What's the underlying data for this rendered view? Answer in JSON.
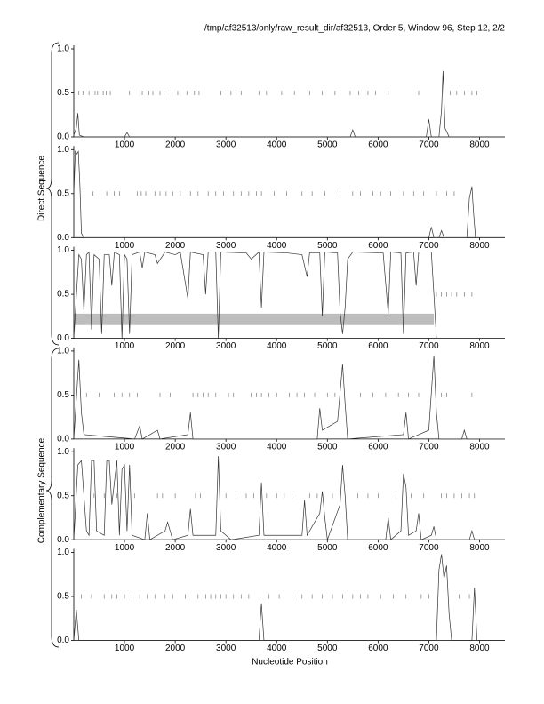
{
  "title": "/tmp/af32513/only/raw_result_dir/af32513, Order 5, Window 96, Step 12, 2/2",
  "x_label": "Nucleotide Position",
  "group_labels": [
    "Direct Sequence",
    "Complementary Sequence"
  ],
  "chart_data": [
    {
      "type": "line",
      "xlim": [
        0,
        8500
      ],
      "ylim": [
        0,
        1
      ],
      "xticks": [
        1000,
        2000,
        3000,
        4000,
        5000,
        6000,
        7000,
        8000
      ],
      "yticks": [
        {
          "value": 0,
          "label": "0.0"
        },
        {
          "value": 0.5,
          "label": "0.5"
        },
        {
          "value": 1,
          "label": "1.0"
        }
      ],
      "color": "#333",
      "x": [
        0,
        50,
        80,
        110,
        200,
        1000,
        1050,
        1100,
        5450,
        5500,
        5550,
        6950,
        7000,
        7050,
        7200,
        7250,
        7280,
        7320,
        7360,
        7400,
        8500
      ],
      "values": [
        0.02,
        0.1,
        0.27,
        0.02,
        0,
        0,
        0.05,
        0,
        0,
        0.08,
        0,
        0,
        0.2,
        0,
        0,
        0.3,
        0.75,
        0.1,
        0.05,
        0,
        0
      ],
      "orf_marks": [
        100,
        180,
        300,
        420,
        470,
        520,
        580,
        640,
        720,
        1100,
        1350,
        1480,
        1560,
        1700,
        1780,
        2050,
        2230,
        2380,
        2470,
        2900,
        3100,
        3300,
        3650,
        3800,
        4100,
        4350,
        4650,
        4900,
        5150,
        5450,
        5620,
        5800,
        5950,
        6200,
        6800,
        7420,
        7550,
        7700,
        7850,
        7950
      ]
    },
    {
      "type": "line",
      "xlim": [
        0,
        8500
      ],
      "ylim": [
        0,
        1
      ],
      "xticks": [
        1000,
        2000,
        3000,
        4000,
        5000,
        6000,
        7000,
        8000
      ],
      "yticks": [
        {
          "value": 0,
          "label": "0.0"
        },
        {
          "value": 0.5,
          "label": "0.5"
        },
        {
          "value": 1,
          "label": "1.0"
        }
      ],
      "color": "#333",
      "x": [
        0,
        30,
        60,
        90,
        120,
        150,
        200,
        7000,
        7050,
        7100,
        7200,
        7250,
        7300,
        7750,
        7800,
        7850,
        7880,
        7920,
        8500
      ],
      "values": [
        0.5,
        0.98,
        0.95,
        0.98,
        0.6,
        0.05,
        0,
        0,
        0.12,
        0,
        0,
        0.08,
        0,
        0,
        0.45,
        0.58,
        0.3,
        0,
        0
      ],
      "orf_marks": [
        200,
        380,
        650,
        800,
        900,
        1250,
        1330,
        1420,
        1600,
        1700,
        1820,
        1950,
        2100,
        2300,
        2450,
        2650,
        2800,
        2950,
        3150,
        3300,
        3450,
        3600,
        3700,
        3950,
        4200,
        4500,
        4700,
        4950,
        5250,
        5500,
        5650,
        5900,
        6050,
        6250,
        6500,
        6700,
        6900,
        7150,
        7350,
        7500
      ]
    },
    {
      "type": "line",
      "xlim": [
        0,
        8500
      ],
      "ylim": [
        0,
        1
      ],
      "xticks": [
        1000,
        2000,
        3000,
        4000,
        5000,
        6000,
        7000,
        8000
      ],
      "yticks": [
        {
          "value": 0,
          "label": "0.0"
        },
        {
          "value": 0.5,
          "label": "0.5"
        },
        {
          "value": 1,
          "label": "1.0"
        }
      ],
      "color": "#333",
      "highlight": {
        "x": [
          0,
          7100
        ],
        "y": [
          0.15,
          0.28
        ],
        "color": "#bdbdbd"
      },
      "x": [
        0,
        100,
        150,
        200,
        250,
        300,
        350,
        400,
        500,
        550,
        600,
        700,
        750,
        800,
        900,
        950,
        1000,
        1050,
        1100,
        1150,
        1300,
        1350,
        1400,
        1600,
        1650,
        1800,
        2000,
        2100,
        2250,
        2300,
        2550,
        2600,
        2650,
        2800,
        2850,
        2900,
        3400,
        3500,
        3650,
        3700,
        3750,
        4200,
        4500,
        4600,
        4650,
        4850,
        4900,
        4950,
        5200,
        5250,
        5300,
        5350,
        5400,
        5500,
        6100,
        6200,
        6250,
        6450,
        6500,
        6550,
        6700,
        6750,
        6800,
        7050,
        7100,
        7150,
        8500
      ],
      "values": [
        0,
        0.95,
        0.9,
        0.3,
        0.95,
        0.98,
        0.1,
        0.95,
        0.9,
        0.05,
        0.95,
        0.95,
        0.6,
        0.98,
        0.95,
        0,
        0.95,
        0.9,
        0.05,
        0.95,
        0.98,
        0.8,
        0.98,
        0.95,
        0.85,
        0.98,
        0.95,
        0.98,
        0.45,
        0.98,
        0.95,
        0.5,
        0.98,
        0.98,
        0,
        0.98,
        0.97,
        0.9,
        0.98,
        0.35,
        0.98,
        0.97,
        0.95,
        0.7,
        0.97,
        0.97,
        0.25,
        0.98,
        0.97,
        0.3,
        0.05,
        0.35,
        0.9,
        0.98,
        0.97,
        0.28,
        0.98,
        0.97,
        0.05,
        0.97,
        0.98,
        0.6,
        0.98,
        0.98,
        0.5,
        0,
        0
      ],
      "orf_marks": [
        7150,
        7250,
        7350,
        7450,
        7550,
        7700,
        7850
      ]
    },
    {
      "type": "line",
      "xlim": [
        0,
        8500
      ],
      "ylim": [
        0,
        1
      ],
      "xticks": [
        1000,
        2000,
        3000,
        4000,
        5000,
        6000,
        7000,
        8000
      ],
      "yticks": [
        {
          "value": 0,
          "label": "0.0"
        },
        {
          "value": 0.5,
          "label": "0.5"
        },
        {
          "value": 1,
          "label": "1.0"
        }
      ],
      "color": "#333",
      "x": [
        0,
        100,
        150,
        200,
        1200,
        1300,
        1350,
        1650,
        1700,
        2250,
        2300,
        2350,
        4800,
        4850,
        4900,
        5200,
        5300,
        5350,
        5400,
        6500,
        6550,
        6600,
        7000,
        7100,
        7150,
        7200,
        7650,
        7700,
        7750,
        8500
      ],
      "values": [
        0,
        0.9,
        0.3,
        0.05,
        0,
        0.15,
        0,
        0.1,
        0,
        0.05,
        0.3,
        0,
        0,
        0.35,
        0.1,
        0.2,
        0.85,
        0.4,
        0,
        0.05,
        0.3,
        0,
        0.1,
        0.95,
        0.3,
        0,
        0,
        0.1,
        0,
        0
      ],
      "orf_marks": [
        250,
        500,
        800,
        950,
        1100,
        1250,
        1700,
        1900,
        2350,
        2450,
        2550,
        2650,
        2800,
        3050,
        3150,
        3500,
        3600,
        3700,
        3850,
        4000,
        4250,
        4400,
        4550,
        4750,
        5000,
        5150,
        5650,
        5900,
        6150,
        6400,
        6600,
        6800,
        7250,
        7350,
        7850
      ]
    },
    {
      "type": "line",
      "xlim": [
        0,
        8500
      ],
      "ylim": [
        0,
        1
      ],
      "xticks": [
        1000,
        2000,
        3000,
        4000,
        5000,
        6000,
        7000,
        8000
      ],
      "yticks": [
        {
          "value": 0,
          "label": "0.0"
        },
        {
          "value": 0.5,
          "label": "0.5"
        },
        {
          "value": 1,
          "label": "1.0"
        }
      ],
      "color": "#333",
      "x": [
        0,
        80,
        150,
        250,
        300,
        350,
        400,
        450,
        600,
        650,
        700,
        750,
        850,
        900,
        950,
        1000,
        1050,
        1100,
        1150,
        1400,
        1450,
        1500,
        1800,
        1850,
        1900,
        1950,
        2250,
        2300,
        2350,
        2800,
        2850,
        2900,
        3100,
        3650,
        3700,
        3750,
        4500,
        4550,
        4600,
        4850,
        4900,
        4950,
        5000,
        5250,
        5300,
        5350,
        5400,
        6150,
        6200,
        6250,
        6450,
        6500,
        6550,
        6600,
        6750,
        6800,
        6850,
        7050,
        7100,
        7150,
        7800,
        7850,
        7900,
        8500
      ],
      "values": [
        0,
        0.85,
        0.9,
        0.1,
        0.05,
        0.9,
        0.9,
        0.1,
        0.05,
        0.9,
        0.9,
        0.4,
        0.9,
        0.05,
        0.8,
        0.85,
        0.1,
        0.85,
        0.05,
        0,
        0.3,
        0,
        0.1,
        0.2,
        0.1,
        0,
        0.05,
        0.35,
        0.05,
        0.05,
        0.95,
        0.1,
        0,
        0.05,
        0.65,
        0.05,
        0.05,
        0.45,
        0.05,
        0.3,
        0.55,
        0.25,
        0,
        0.4,
        0.85,
        0.5,
        0,
        0,
        0.25,
        0,
        0.1,
        0.75,
        0.6,
        0.05,
        0.1,
        0.3,
        0,
        0.05,
        0.15,
        0,
        0,
        0.1,
        0,
        0
      ],
      "orf_marks": [
        400,
        600,
        850,
        1200,
        1650,
        1750,
        2000,
        2400,
        2500,
        3000,
        3200,
        3400,
        3550,
        3800,
        4000,
        4150,
        4300,
        4650,
        4800,
        5100,
        5600,
        5800,
        6000,
        6350,
        6650,
        6900,
        7250,
        7350,
        7500,
        7650,
        7800,
        7900
      ]
    },
    {
      "type": "line",
      "xlim": [
        0,
        8500
      ],
      "ylim": [
        0,
        1
      ],
      "xticks": [
        1000,
        2000,
        3000,
        4000,
        5000,
        6000,
        7000,
        8000
      ],
      "yticks": [
        {
          "value": 0,
          "label": "0.0"
        },
        {
          "value": 0.5,
          "label": "0.5"
        },
        {
          "value": 1,
          "label": "1.0"
        }
      ],
      "color": "#333",
      "x": [
        0,
        50,
        100,
        3650,
        3700,
        3750,
        7150,
        7200,
        7250,
        7300,
        7350,
        7400,
        7450,
        7850,
        7900,
        7950,
        8500
      ],
      "values": [
        0,
        0.35,
        0,
        0,
        0.42,
        0,
        0,
        0.8,
        0.98,
        0.7,
        0.85,
        0.3,
        0,
        0,
        0.6,
        0,
        0
      ],
      "orf_marks": [
        150,
        350,
        600,
        750,
        850,
        1000,
        1150,
        1300,
        1450,
        1600,
        1800,
        1950,
        2200,
        2450,
        2600,
        2700,
        2800,
        2900,
        3000,
        3150,
        3300,
        3450,
        3850,
        4050,
        4300,
        4500,
        4700,
        4900,
        5100,
        5300,
        5500,
        5650,
        5800,
        6050,
        6300,
        6550,
        6850,
        7000,
        7600,
        7800
      ]
    }
  ]
}
